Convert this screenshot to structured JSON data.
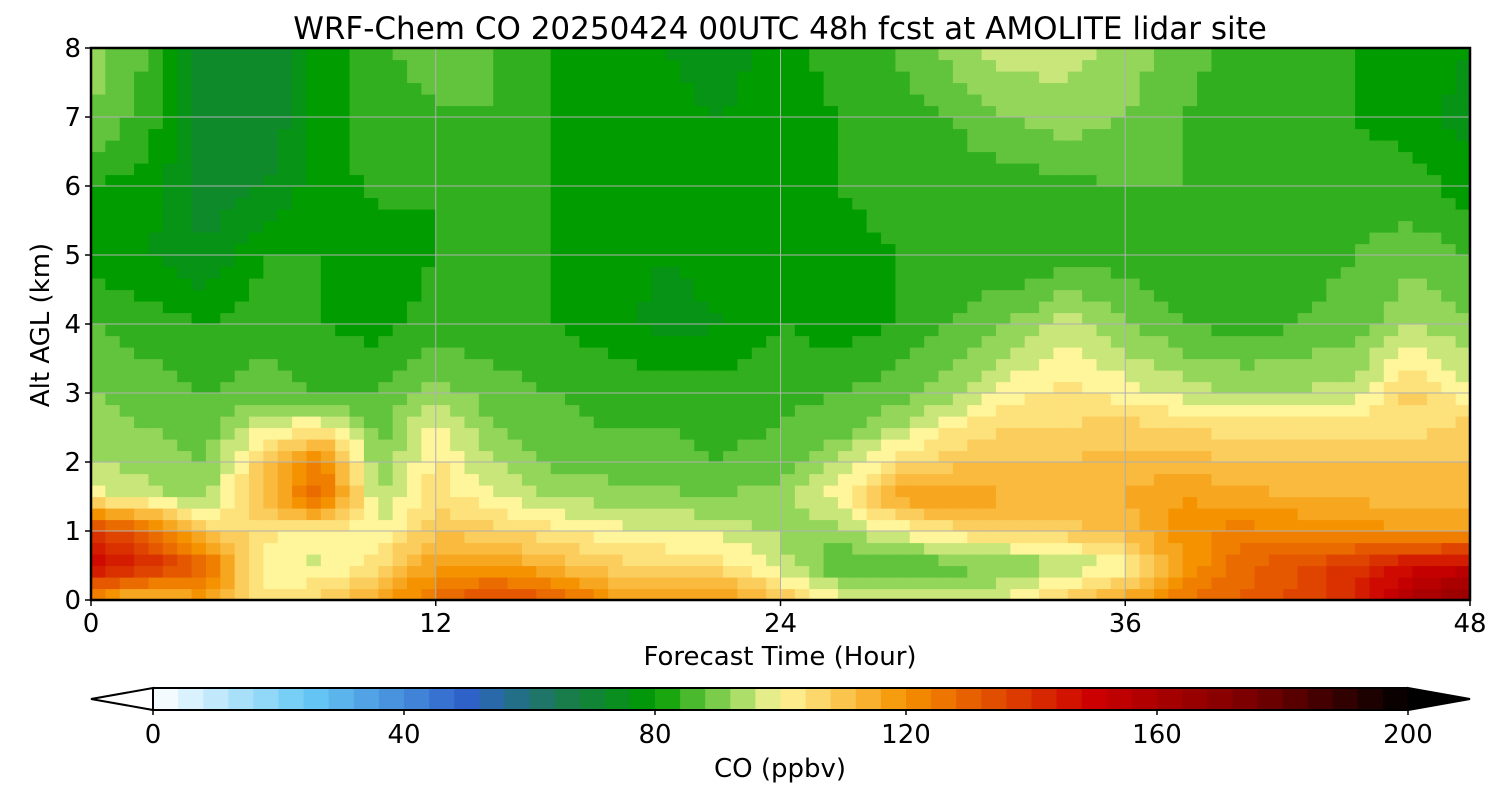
{
  "chart_data": {
    "type": "heatmap",
    "subtype": "filled-contour",
    "title": "WRF-Chem CO  20250424 00UTC 48h fcst at AMOLITE lidar site",
    "xlabel": "Forecast Time (Hour)",
    "ylabel": "Alt AGL (km)",
    "xlim": [
      0,
      48
    ],
    "ylim": [
      0,
      8
    ],
    "x_ticks": [
      0,
      12,
      24,
      36,
      48
    ],
    "y_ticks": [
      0,
      1,
      2,
      3,
      4,
      5,
      6,
      7,
      8
    ],
    "grid": true,
    "x": [
      0,
      2,
      4,
      6,
      8,
      10,
      12,
      14,
      16,
      18,
      20,
      22,
      24,
      26,
      28,
      30,
      32,
      34,
      36,
      38,
      40,
      42,
      44,
      46,
      48
    ],
    "y": [
      0,
      0.5,
      1,
      1.5,
      2,
      2.5,
      3,
      4,
      5,
      6,
      7,
      8
    ],
    "z": [
      [
        118,
        108,
        117,
        104,
        108,
        116,
        127,
        138,
        132,
        120,
        120,
        118,
        110,
        100,
        98,
        96,
        100,
        108,
        116,
        125,
        130,
        135,
        143,
        160,
        170
      ],
      [
        150,
        142,
        130,
        98,
        97,
        105,
        118,
        118,
        113,
        108,
        106,
        104,
        96,
        86,
        86,
        88,
        90,
        93,
        100,
        118,
        128,
        134,
        140,
        148,
        152
      ],
      [
        140,
        128,
        108,
        104,
        100,
        98,
        110,
        107,
        103,
        100,
        98,
        97,
        93,
        92,
        98,
        104,
        106,
        108,
        112,
        120,
        124,
        122,
        120,
        118,
        118
      ],
      [
        100,
        96,
        92,
        112,
        130,
        94,
        104,
        99,
        94,
        92,
        91,
        90,
        92,
        100,
        116,
        120,
        114,
        112,
        114,
        118,
        116,
        114,
        113,
        112,
        112
      ],
      [
        94,
        92,
        90,
        108,
        124,
        90,
        103,
        94,
        89,
        88,
        87,
        86,
        88,
        94,
        104,
        108,
        110,
        110,
        112,
        112,
        110,
        110,
        110,
        110,
        110
      ],
      [
        92,
        90,
        88,
        98,
        102,
        88,
        100,
        90,
        87,
        86,
        86,
        85,
        86,
        88,
        94,
        102,
        106,
        106,
        108,
        106,
        104,
        104,
        104,
        104,
        108
      ],
      [
        90,
        88,
        86,
        88,
        86,
        86,
        92,
        88,
        86,
        85,
        84,
        84,
        85,
        86,
        88,
        92,
        100,
        104,
        100,
        96,
        94,
        94,
        96,
        108,
        98
      ],
      [
        86,
        84,
        82,
        84,
        82,
        80,
        84,
        83,
        82,
        80,
        76,
        78,
        82,
        80,
        82,
        86,
        90,
        96,
        90,
        86,
        84,
        86,
        88,
        94,
        90
      ],
      [
        80,
        78,
        74,
        82,
        82,
        79,
        82,
        82,
        82,
        80,
        78,
        80,
        82,
        81,
        82,
        84,
        82,
        84,
        84,
        83,
        82,
        84,
        86,
        88,
        86
      ],
      [
        82,
        80,
        72,
        74,
        80,
        83,
        82,
        84,
        82,
        82,
        80,
        80,
        80,
        82,
        83,
        84,
        84,
        85,
        86,
        86,
        84,
        82,
        84,
        84,
        80
      ],
      [
        90,
        84,
        72,
        70,
        80,
        84,
        85,
        86,
        82,
        80,
        79,
        78,
        80,
        82,
        84,
        86,
        90,
        92,
        90,
        86,
        84,
        82,
        82,
        80,
        76
      ],
      [
        92,
        86,
        72,
        70,
        80,
        84,
        90,
        86,
        82,
        80,
        78,
        76,
        80,
        84,
        86,
        92,
        96,
        96,
        92,
        88,
        84,
        83,
        82,
        80,
        78
      ]
    ]
  },
  "colorbar": {
    "label": "CO  (ppbv)",
    "min": 0,
    "max": 200,
    "ticks": [
      0,
      40,
      80,
      120,
      160,
      200
    ],
    "extend": "both",
    "stops": [
      {
        "v": 0,
        "c": "#ffffff"
      },
      {
        "v": 25,
        "c": "#66c8f5"
      },
      {
        "v": 50,
        "c": "#2f62c9"
      },
      {
        "v": 65,
        "c": "#1a7a50"
      },
      {
        "v": 80,
        "c": "#009c00"
      },
      {
        "v": 92,
        "c": "#93d65a"
      },
      {
        "v": 100,
        "c": "#fff59a"
      },
      {
        "v": 120,
        "c": "#f59200"
      },
      {
        "v": 150,
        "c": "#cc0000"
      },
      {
        "v": 175,
        "c": "#7a0000"
      },
      {
        "v": 200,
        "c": "#000000"
      }
    ]
  }
}
